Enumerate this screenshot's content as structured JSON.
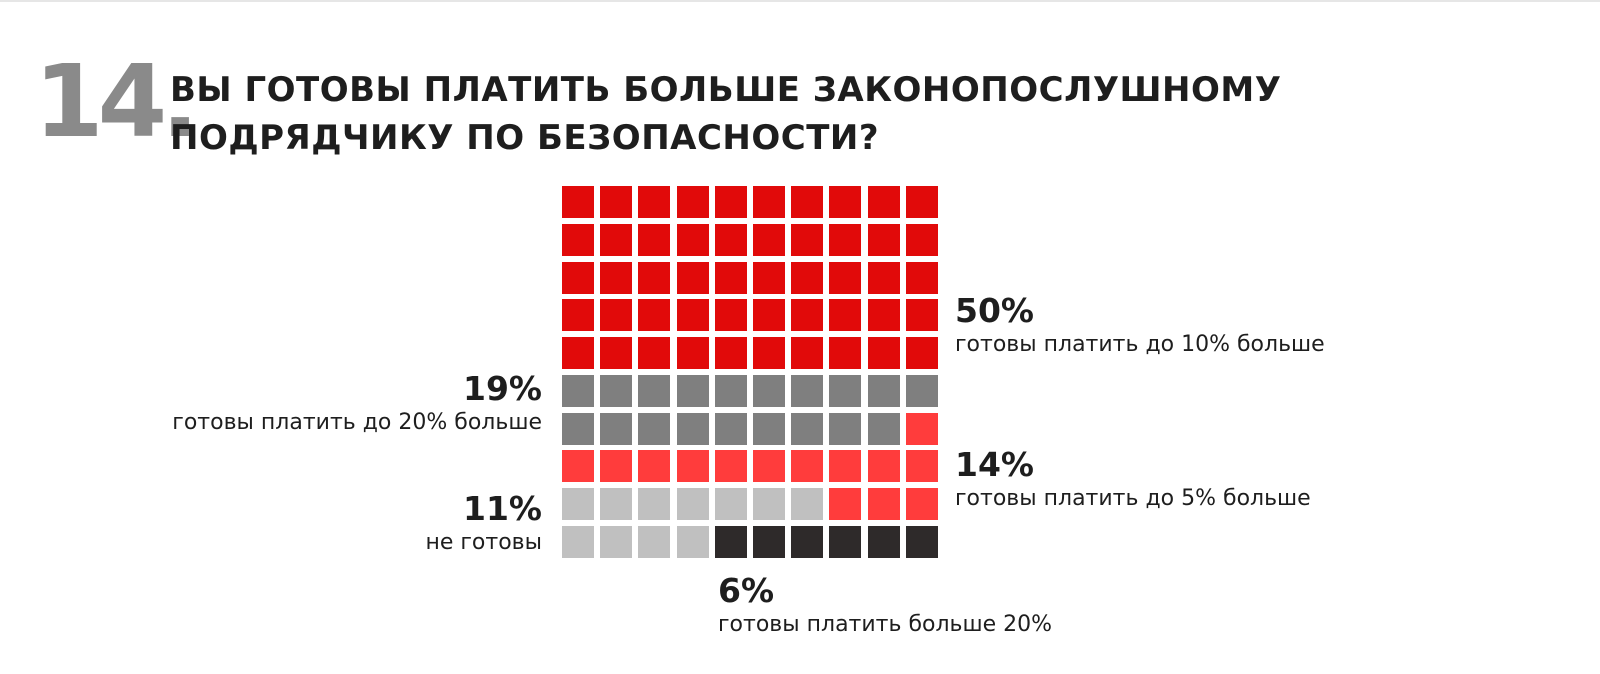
{
  "question": {
    "number": "14.",
    "title_line1": "ВЫ ГОТОВЫ ПЛАТИТЬ БОЛЬШЕ ЗАКОНОПОСЛУШНОМУ",
    "title_line2": "ПОДРЯДЧИКУ ПО БЕЗОПАСНОСТИ?"
  },
  "chart_data": {
    "type": "waffle",
    "grid": {
      "rows": 10,
      "cols": 10
    },
    "title": "ВЫ ГОТОВЫ ПЛАТИТЬ БОЛЬШЕ ЗАКОНОПОСЛУШНОМУ ПОДРЯДЧИКУ ПО БЕЗОПАСНОСТИ?",
    "segments": [
      {
        "key": "s50",
        "value": 50,
        "percent_label": "50%",
        "label": "готовы платить до 10% больше",
        "color": "#e10a0a"
      },
      {
        "key": "s19",
        "value": 19,
        "percent_label": "19%",
        "label": "готовы платить до 20% больше",
        "color": "#7f7f7f"
      },
      {
        "key": "s14",
        "value": 14,
        "percent_label": "14%",
        "label": "готовы платить до 5% больше",
        "color": "#ff3c3c"
      },
      {
        "key": "s11",
        "value": 11,
        "percent_label": "11%",
        "label": "не готовы",
        "color": "#c0c0c0"
      },
      {
        "key": "s6",
        "value": 6,
        "percent_label": "6%",
        "label": "готовы платить больше 20%",
        "color": "#2e2a2a"
      }
    ]
  },
  "colors": {
    "number": "#8a8a8a",
    "text": "#1e1e1e",
    "background": "#ffffff"
  }
}
